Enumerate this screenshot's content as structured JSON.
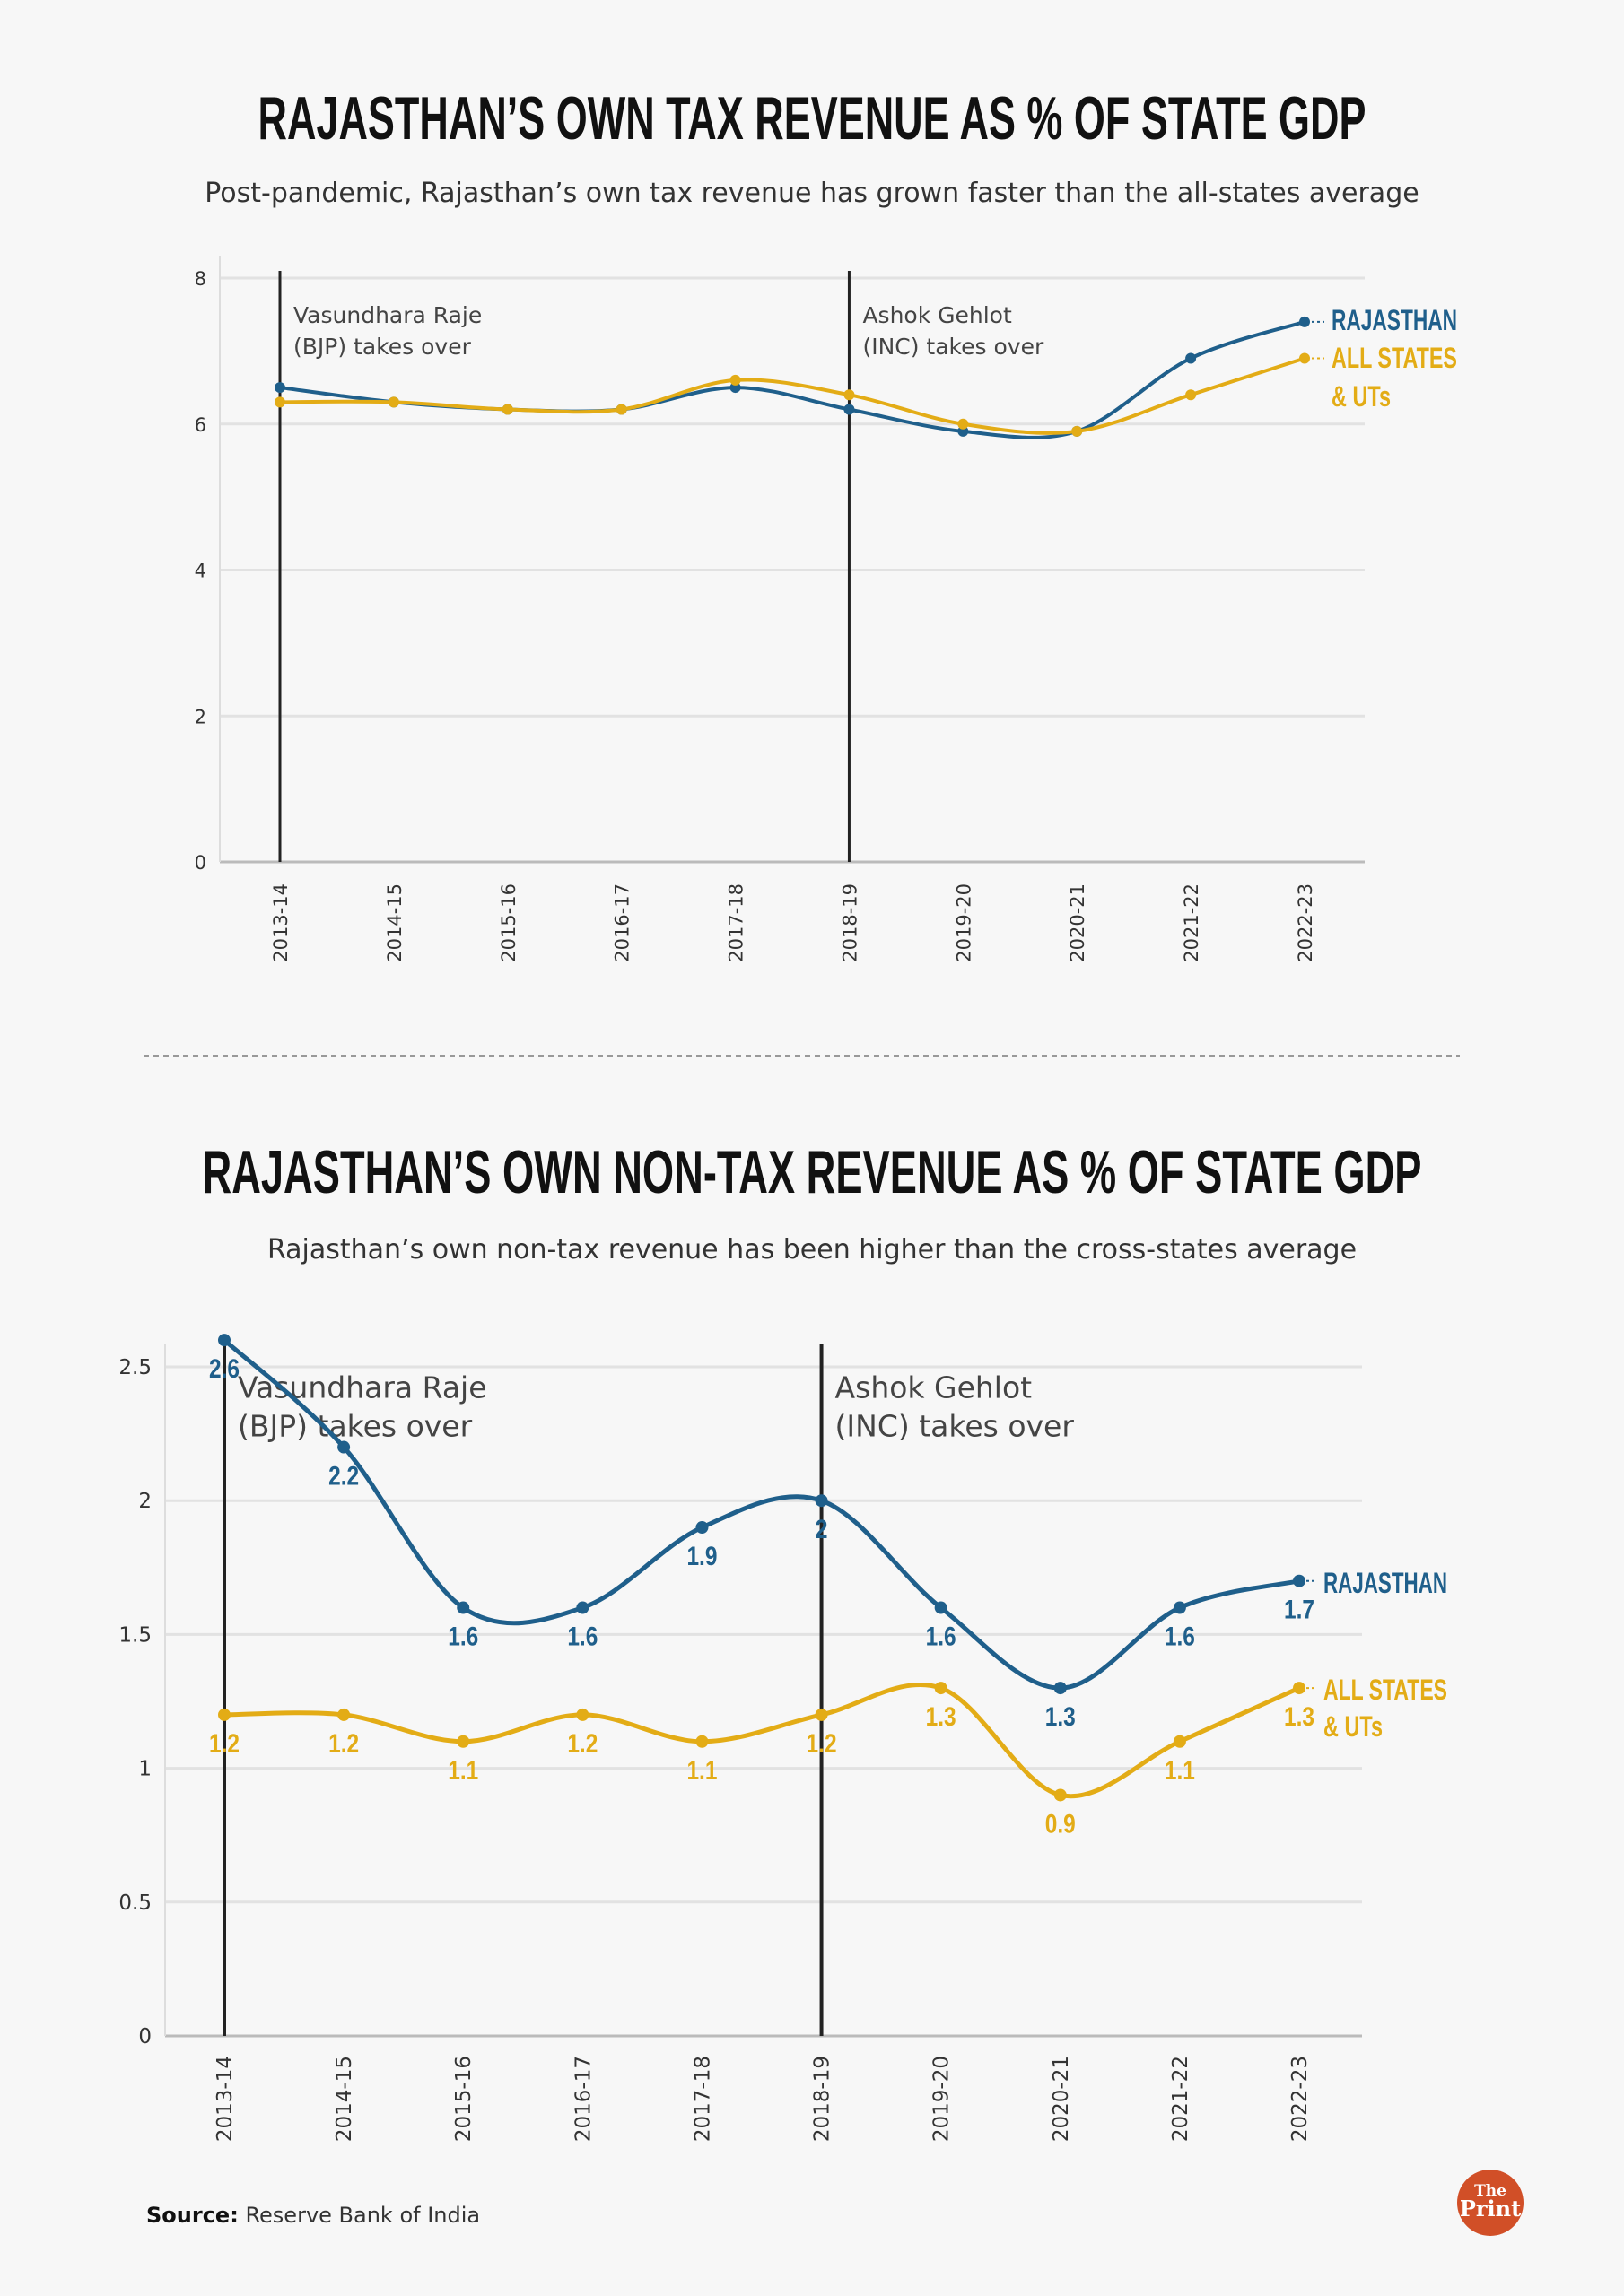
{
  "colors": {
    "rajasthan": "#1f5f8b",
    "all_states": "#e3ac16",
    "background": "#f7f7f7",
    "logo": "#d14f27"
  },
  "chart_data": [
    {
      "type": "line",
      "title": "RAJASTHAN’S OWN TAX REVENUE AS % OF STATE GDP",
      "subtitle": "Post-pandemic, Rajasthan’s own tax revenue has grown faster than the all-states average",
      "categories": [
        "2013-14",
        "2014-15",
        "2015-16",
        "2016-17",
        "2017-18",
        "2018-19",
        "2019-20",
        "2020-21",
        "2021-22",
        "2022-23"
      ],
      "yticks": [
        "0",
        "2",
        "4",
        "6",
        "8"
      ],
      "ylim": [
        0,
        8
      ],
      "grid": true,
      "legend_placement": "right end of lines",
      "series": [
        {
          "name": "RAJASTHAN",
          "values": [
            6.5,
            6.3,
            6.2,
            6.2,
            6.5,
            6.2,
            5.9,
            5.9,
            6.9,
            7.4
          ]
        },
        {
          "name": "ALL STATES",
          "name2": "& UTs",
          "values": [
            6.3,
            6.3,
            6.2,
            6.2,
            6.6,
            6.4,
            6.0,
            5.9,
            6.4,
            6.9
          ]
        }
      ],
      "annotations": [
        {
          "category": "2013-14",
          "line1": "Vasundhara Raje",
          "line2": "(BJP) takes over"
        },
        {
          "category": "2018-19",
          "line1": "Ashok Gehlot",
          "line2": "(INC) takes over"
        }
      ],
      "data_labels": false
    },
    {
      "type": "line",
      "title": "RAJASTHAN’S OWN NON-TAX REVENUE AS % OF STATE GDP",
      "subtitle": "Rajasthan’s own non-tax revenue has been higher than the cross-states average",
      "categories": [
        "2013-14",
        "2014-15",
        "2015-16",
        "2016-17",
        "2017-18",
        "2018-19",
        "2019-20",
        "2020-21",
        "2021-22",
        "2022-23"
      ],
      "yticks": [
        "0",
        "0.5",
        "1",
        "1.5",
        "2",
        "2.5"
      ],
      "ylim": [
        0,
        2.6
      ],
      "grid": true,
      "legend_placement": "right end of lines",
      "series": [
        {
          "name": "RAJASTHAN",
          "values": [
            2.6,
            2.2,
            1.6,
            1.6,
            1.9,
            2,
            1.6,
            1.3,
            1.6,
            1.7
          ],
          "labels": [
            "2.6",
            "2.2",
            "1.6",
            "1.6",
            "1.9",
            "2",
            "1.6",
            "1.3",
            "1.6",
            "1.7"
          ]
        },
        {
          "name": "ALL STATES",
          "name2": "& UTs",
          "values": [
            1.2,
            1.2,
            1.1,
            1.2,
            1.1,
            1.2,
            1.3,
            0.9,
            1.1,
            1.3
          ],
          "labels": [
            "1.2",
            "1.2",
            "1.1",
            "1.2",
            "1.1",
            "1.2",
            "1.3",
            "0.9",
            "1.1",
            "1.3"
          ]
        }
      ],
      "annotations": [
        {
          "category": "2013-14",
          "line1": "Vasundhara Raje",
          "line2": "(BJP) takes over"
        },
        {
          "category": "2018-19",
          "line1": "Ashok Gehlot",
          "line2": "(INC) takes over"
        }
      ],
      "data_labels": true
    }
  ],
  "source": {
    "label": "Source:",
    "text": "Reserve Bank of India"
  },
  "logo": {
    "line1": "The",
    "line2": "Print"
  }
}
